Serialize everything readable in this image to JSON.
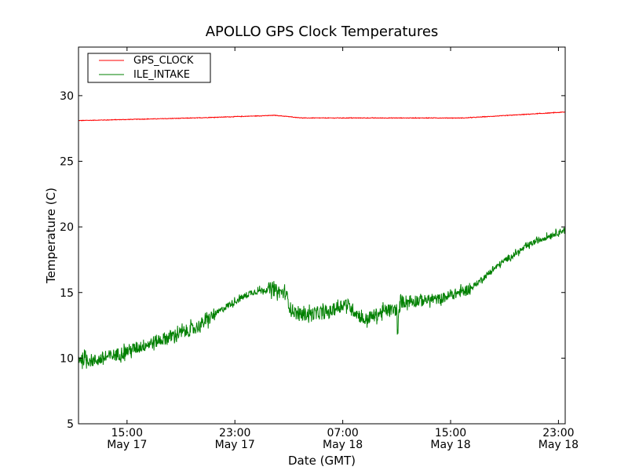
{
  "chart_data": {
    "type": "line",
    "title": "APOLLO GPS Clock Temperatures",
    "xlabel": "Date (GMT)",
    "ylabel": "Temperature (C)",
    "x_units": "hours since May 17 00:00 GMT",
    "xlim": [
      11.4,
      47.5
    ],
    "ylim": [
      5,
      33.7
    ],
    "grid": false,
    "legend_position": "top-left",
    "x_ticks": [
      {
        "value": 15,
        "label": "15:00",
        "sublabel": "May 17"
      },
      {
        "value": 23,
        "label": "23:00",
        "sublabel": "May 17"
      },
      {
        "value": 31,
        "label": "07:00",
        "sublabel": "May 18"
      },
      {
        "value": 39,
        "label": "15:00",
        "sublabel": "May 18"
      },
      {
        "value": 47,
        "label": "23:00",
        "sublabel": "May 18"
      }
    ],
    "y_ticks": [
      {
        "value": 5,
        "label": "5"
      },
      {
        "value": 10,
        "label": "10"
      },
      {
        "value": 15,
        "label": "15"
      },
      {
        "value": 20,
        "label": "20"
      },
      {
        "value": 25,
        "label": "25"
      },
      {
        "value": 30,
        "label": "30"
      }
    ],
    "series": [
      {
        "name": "GPS_CLOCK",
        "color": "#ff0000",
        "noise_amplitude": 0.02,
        "x": [
          11.4,
          20,
          26,
          28,
          36,
          40,
          47.5
        ],
        "y": [
          28.1,
          28.3,
          28.5,
          28.3,
          28.3,
          28.3,
          28.75
        ]
      },
      {
        "name": "ILE_INTAKE",
        "color": "#008000",
        "noise_amplitude": 0.5,
        "x": [
          11.4,
          12.56,
          14.3,
          17.2,
          20.1,
          22.45,
          24.2,
          25.6,
          26.8,
          27.1,
          27.7,
          30.0,
          31.2,
          32.6,
          34.1,
          35.0,
          35.05,
          35.25,
          38.15,
          40.5,
          42.8,
          45.1,
          47.5
        ],
        "y": [
          10.0,
          9.8,
          10.3,
          11.3,
          12.3,
          14.0,
          15.0,
          15.3,
          14.9,
          13.8,
          13.3,
          13.5,
          14.2,
          12.9,
          13.6,
          13.7,
          11.8,
          14.3,
          14.5,
          15.3,
          17.3,
          18.8,
          19.8
        ]
      }
    ]
  }
}
